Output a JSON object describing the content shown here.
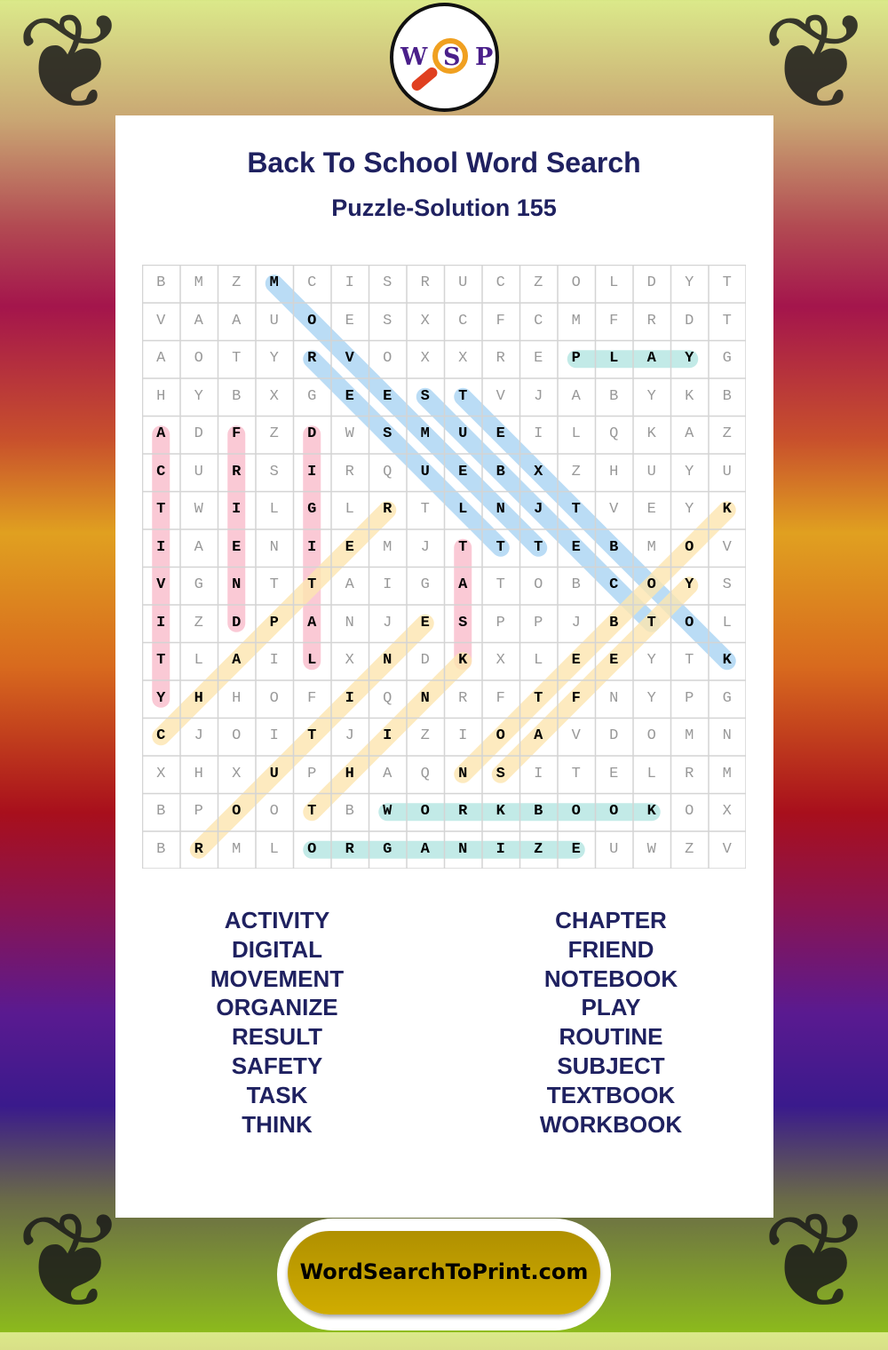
{
  "logo": {
    "letters": [
      "W",
      "S",
      "P"
    ]
  },
  "title": "Back To School Word Search",
  "subtitle": "Puzzle-Solution 155",
  "grid": [
    "BMZMCISRUCZOLDYT",
    "VAAUOESXCFCMFRDT",
    "AOTYRVOXXREPLAYG",
    "HYBXGEESTVJABYKB",
    "ADFZDWSMUEILQKAZ",
    "CURSIRQUEBXZHUYU",
    "TWILGLRTLNJTVEYK",
    "IAENIEMJTTTEBMOV",
    "VGNTTAIGATOBCOYS",
    "IZDPANJESPPJBTOL",
    "TLAILXNDKXLEEYTK",
    "YHHOFIQNRFTFNYPG",
    "CJOITJIZIOAVDOMN",
    "XHXUPHAQNSITELRM",
    "BPOOTBWORKBOOKOX",
    "BRMLORGANIZEUWZV"
  ],
  "solutions": [
    {
      "word": "MOVEMENT",
      "from": [
        0,
        3
      ],
      "to": [
        7,
        10
      ],
      "color": "#a9d4f3"
    },
    {
      "word": "RESULT",
      "from": [
        2,
        4
      ],
      "to": [
        7,
        9
      ],
      "color": "#a9d4f3"
    },
    {
      "word": "SUBJECT",
      "from": [
        3,
        7
      ],
      "to": [
        9,
        13
      ],
      "color": "#a9d4f3"
    },
    {
      "word": "TEXTBOOK",
      "from": [
        3,
        8
      ],
      "to": [
        10,
        15
      ],
      "color": "#a9d4f3"
    },
    {
      "word": "PLAY",
      "from": [
        2,
        11
      ],
      "to": [
        2,
        14
      ],
      "color": "#b3e5e2"
    },
    {
      "word": "WORKBOOK",
      "from": [
        14,
        6
      ],
      "to": [
        14,
        13
      ],
      "color": "#b3e5e2"
    },
    {
      "word": "ORGANIZE",
      "from": [
        15,
        4
      ],
      "to": [
        15,
        11
      ],
      "color": "#b3e5e2"
    },
    {
      "word": "ACTIVITY",
      "from": [
        4,
        0
      ],
      "to": [
        11,
        0
      ],
      "color": "#f9bccb"
    },
    {
      "word": "FRIEND",
      "from": [
        4,
        2
      ],
      "to": [
        9,
        2
      ],
      "color": "#f9bccb"
    },
    {
      "word": "DIGITAL",
      "from": [
        4,
        4
      ],
      "to": [
        10,
        4
      ],
      "color": "#f9bccb"
    },
    {
      "word": "TASK",
      "from": [
        7,
        8
      ],
      "to": [
        10,
        8
      ],
      "color": "#f9bccb"
    },
    {
      "word": "CHAPTER",
      "from": [
        12,
        0
      ],
      "to": [
        6,
        6
      ],
      "color": "#fde6b0"
    },
    {
      "word": "ROUTINE",
      "from": [
        15,
        1
      ],
      "to": [
        9,
        7
      ],
      "color": "#fde6b0"
    },
    {
      "word": "THINK",
      "from": [
        14,
        4
      ],
      "to": [
        10,
        8
      ],
      "color": "#fde6b0"
    },
    {
      "word": "NOTEBOOK",
      "from": [
        13,
        8
      ],
      "to": [
        6,
        15
      ],
      "color": "#fde6b0"
    },
    {
      "word": "SAFETY",
      "from": [
        13,
        9
      ],
      "to": [
        8,
        14
      ],
      "color": "#fde6b0"
    }
  ],
  "word_list": {
    "left": [
      "ACTIVITY",
      "DIGITAL",
      "MOVEMENT",
      "ORGANIZE",
      "RESULT",
      "SAFETY",
      "TASK",
      "THINK"
    ],
    "right": [
      "CHAPTER",
      "FRIEND",
      "NOTEBOOK",
      "PLAY",
      "ROUTINE",
      "SUBJECT",
      "TEXTBOOK",
      "WORKBOOK"
    ]
  },
  "footer": {
    "site": "WordSearchToPrint.com"
  }
}
